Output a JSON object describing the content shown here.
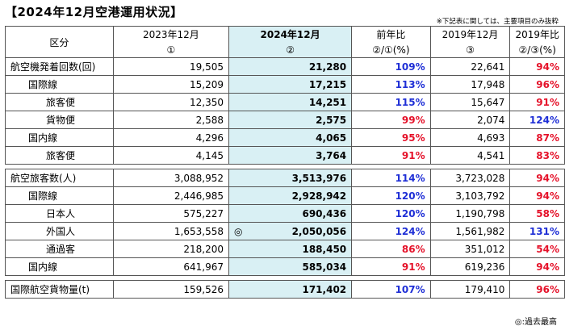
{
  "title": "【2024年12月空港運用状況】",
  "note_top": "※下記表に関しては、主要項目のみ抜粋",
  "note_bottom": "◎:過去最高",
  "header": {
    "label": "区分",
    "col1": "2023年12月",
    "col1_sub": "①",
    "col2": "2024年12月",
    "col2_sub": "②",
    "col3": "前年比",
    "col3_sub": "②/①(%)",
    "col4": "2019年12月",
    "col4_sub": "③",
    "col5": "2019年比",
    "col5_sub": "②/③(%)"
  },
  "rows": [
    {
      "label": "航空機発着回数(回)",
      "v2023": "19,505",
      "v2024": "21,280",
      "yoy": "109%",
      "v2019": "22,641",
      "vs2019": "94%",
      "mark": ""
    },
    {
      "label": "国際線",
      "v2023": "15,209",
      "v2024": "17,215",
      "yoy": "113%",
      "v2019": "17,948",
      "vs2019": "96%",
      "mark": ""
    },
    {
      "label": "旅客便",
      "v2023": "12,350",
      "v2024": "14,251",
      "yoy": "115%",
      "v2019": "15,647",
      "vs2019": "91%",
      "mark": ""
    },
    {
      "label": "貨物便",
      "v2023": "2,588",
      "v2024": "2,575",
      "yoy": "99%",
      "v2019": "2,074",
      "vs2019": "124%",
      "mark": ""
    },
    {
      "label": "国内線",
      "v2023": "4,296",
      "v2024": "4,065",
      "yoy": "95%",
      "v2019": "4,693",
      "vs2019": "87%",
      "mark": ""
    },
    {
      "label": "旅客便",
      "v2023": "4,145",
      "v2024": "3,764",
      "yoy": "91%",
      "v2019": "4,541",
      "vs2019": "83%",
      "mark": ""
    },
    {
      "label": "航空旅客数(人)",
      "v2023": "3,088,952",
      "v2024": "3,513,976",
      "yoy": "114%",
      "v2019": "3,723,028",
      "vs2019": "94%",
      "mark": ""
    },
    {
      "label": "国際線",
      "v2023": "2,446,985",
      "v2024": "2,928,942",
      "yoy": "120%",
      "v2019": "3,103,792",
      "vs2019": "94%",
      "mark": ""
    },
    {
      "label": "日本人",
      "v2023": "575,227",
      "v2024": "690,436",
      "yoy": "120%",
      "v2019": "1,190,798",
      "vs2019": "58%",
      "mark": ""
    },
    {
      "label": "外国人",
      "v2023": "1,653,558",
      "v2024": "2,050,056",
      "yoy": "124%",
      "v2019": "1,561,982",
      "vs2019": "131%",
      "mark": "◎"
    },
    {
      "label": "通過客",
      "v2023": "218,200",
      "v2024": "188,450",
      "yoy": "86%",
      "v2019": "351,012",
      "vs2019": "54%",
      "mark": ""
    },
    {
      "label": "国内線",
      "v2023": "641,967",
      "v2024": "585,034",
      "yoy": "91%",
      "v2019": "619,236",
      "vs2019": "94%",
      "mark": ""
    },
    {
      "label": "国際航空貨物量(t)",
      "v2023": "159,526",
      "v2024": "171,402",
      "yoy": "107%",
      "v2019": "179,410",
      "vs2019": "96%",
      "mark": ""
    }
  ],
  "colors": {
    "highlight": "#d9f0f4",
    "increase": "#1f2fd6",
    "decrease": "#e5122a"
  }
}
